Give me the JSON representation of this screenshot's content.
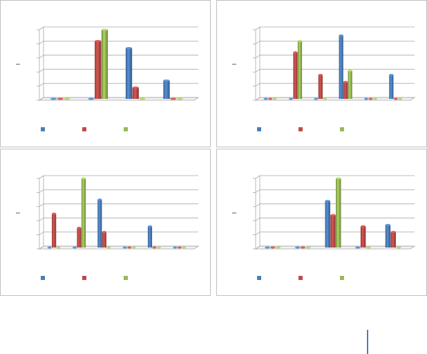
{
  "chart_data": [
    {
      "type": "bar",
      "categories": [
        null,
        null,
        null,
        null
      ],
      "series": [
        {
          "color": "#4a7ebb",
          "values": [
            0,
            0,
            3.6,
            1.3
          ]
        },
        {
          "color": "#be4b48",
          "values": [
            0,
            4.1,
            0.8,
            0
          ]
        },
        {
          "color": "#98b954",
          "values": [
            0,
            4.9,
            0,
            0
          ]
        }
      ],
      "ylim": [
        0,
        5
      ],
      "yticks": [
        0,
        1,
        2,
        3,
        4,
        5
      ],
      "grid": true
    },
    {
      "type": "bar",
      "categories": [
        null,
        null,
        null,
        null,
        null,
        null
      ],
      "series": [
        {
          "color": "#4a7ebb",
          "values": [
            0,
            0,
            0,
            4.5,
            0,
            1.7
          ]
        },
        {
          "color": "#be4b48",
          "values": [
            0,
            3.3,
            1.7,
            1.2,
            0,
            0
          ]
        },
        {
          "color": "#98b954",
          "values": [
            0,
            4.1,
            0,
            2.0,
            0,
            0
          ]
        }
      ],
      "ylim": [
        0,
        5
      ],
      "yticks": [
        0,
        1,
        2,
        3,
        4,
        5
      ],
      "grid": true
    },
    {
      "type": "bar",
      "categories": [
        null,
        null,
        null,
        null,
        null,
        null
      ],
      "series": [
        {
          "color": "#4a7ebb",
          "values": [
            0,
            0,
            3.4,
            0,
            1.5,
            0
          ]
        },
        {
          "color": "#be4b48",
          "values": [
            2.4,
            1.4,
            1.1,
            0,
            0,
            0
          ]
        },
        {
          "color": "#98b954",
          "values": [
            0,
            4.9,
            0,
            0,
            0,
            0
          ]
        }
      ],
      "ylim": [
        0,
        5
      ],
      "yticks": [
        0,
        1,
        2,
        3,
        4,
        5
      ],
      "grid": true
    },
    {
      "type": "bar",
      "categories": [
        null,
        null,
        null,
        null,
        null
      ],
      "series": [
        {
          "color": "#4a7ebb",
          "values": [
            0,
            0,
            3.3,
            0,
            1.6
          ]
        },
        {
          "color": "#be4b48",
          "values": [
            0,
            0,
            2.3,
            1.5,
            1.1
          ]
        },
        {
          "color": "#98b954",
          "values": [
            0,
            0,
            4.9,
            0,
            0
          ]
        }
      ],
      "ylim": [
        0,
        5
      ],
      "yticks": [
        0,
        1,
        2,
        3,
        4,
        5
      ],
      "grid": true
    }
  ]
}
